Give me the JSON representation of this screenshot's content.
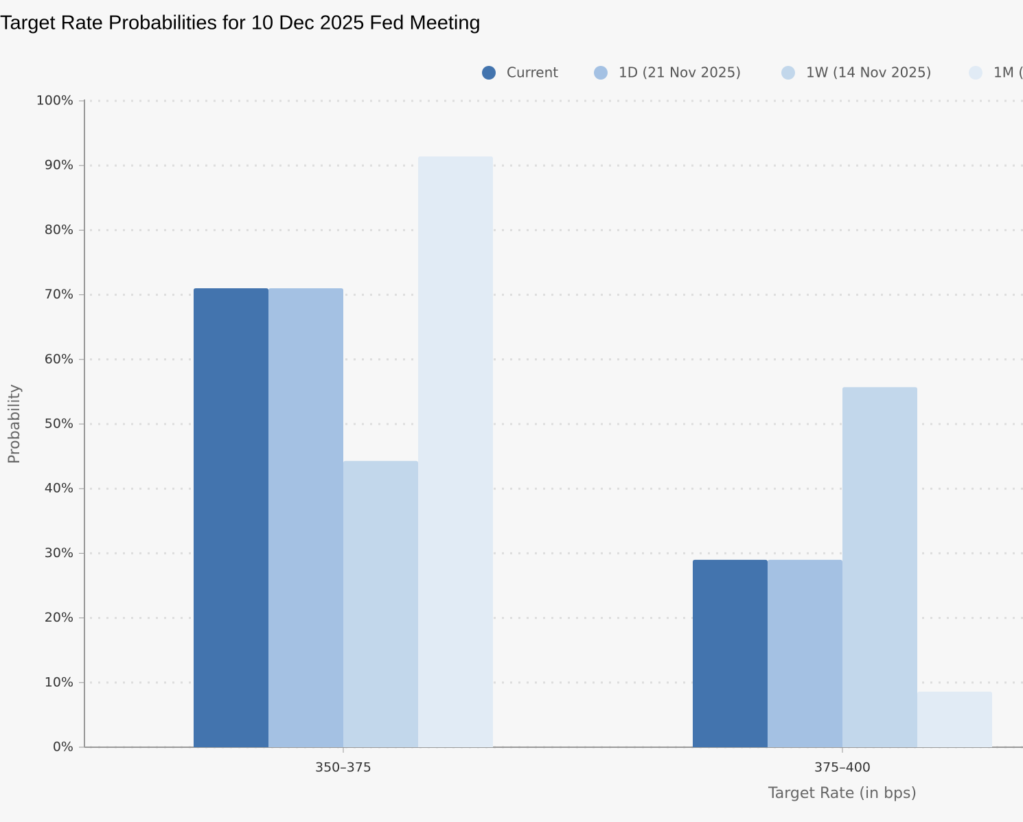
{
  "chart_data": {
    "type": "bar",
    "title": "Target Rate Probabilities for 10 Dec 2025 Fed Meeting",
    "x_label": "Target Rate (in bps)",
    "y_label": "Probability",
    "categories": [
      "350–375",
      "375–400"
    ],
    "series": [
      {
        "name": "Current",
        "color": "#4374ae",
        "values": [
          71,
          29
        ]
      },
      {
        "name": "1D (21 Nov 2025)",
        "color": "#a4c1e3",
        "values": [
          71,
          29
        ]
      },
      {
        "name": "1W (14 Nov 2025)",
        "color": "#c2d7eb",
        "values": [
          44.3,
          55.7
        ]
      },
      {
        "name": "1M (",
        "color": "#e1ebf5",
        "values": [
          91.4,
          8.6
        ]
      }
    ],
    "ylim": [
      0,
      100
    ],
    "yticks": [
      {
        "value": 0,
        "label": "0%"
      },
      {
        "value": 10,
        "label": "10%"
      },
      {
        "value": 20,
        "label": "20%"
      },
      {
        "value": 30,
        "label": "30%"
      },
      {
        "value": 40,
        "label": "40%"
      },
      {
        "value": 50,
        "label": "50%"
      },
      {
        "value": 60,
        "label": "60%"
      },
      {
        "value": 70,
        "label": "70%"
      },
      {
        "value": 80,
        "label": "80%"
      },
      {
        "value": 90,
        "label": "90%"
      },
      {
        "value": 100,
        "label": "100%"
      }
    ],
    "grid": true,
    "legend": "top"
  }
}
